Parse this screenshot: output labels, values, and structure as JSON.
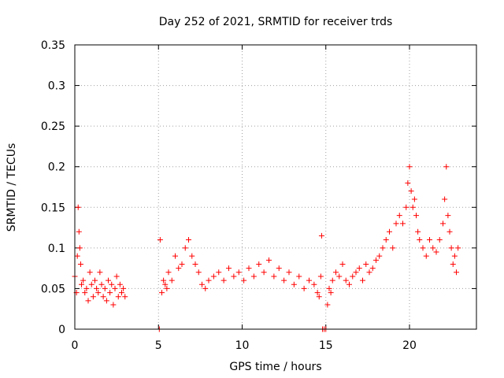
{
  "chart_data": {
    "type": "scatter",
    "title": "Day 252 of 2021, SRMTID for receiver trds",
    "xlabel": "GPS time / hours",
    "ylabel": "SRMTID / TECUs",
    "xlim": [
      0,
      24
    ],
    "ylim": [
      0,
      0.35
    ],
    "x_ticks": [
      0,
      5,
      10,
      15,
      20
    ],
    "x_tick_labels": [
      "0",
      "5",
      "10",
      "15",
      "20"
    ],
    "y_ticks": [
      0,
      0.05,
      0.1,
      0.15,
      0.2,
      0.25,
      0.3,
      0.35
    ],
    "y_tick_labels": [
      "0",
      "0.05",
      "0.1",
      "0.15",
      "0.2",
      "0.25",
      "0.3",
      "0.35"
    ],
    "grid": true,
    "marker": "plus",
    "color": "#ff0000",
    "series": [
      {
        "name": "trds",
        "x": [
          0.0,
          0.1,
          0.15,
          0.2,
          0.25,
          0.3,
          0.35,
          0.4,
          0.5,
          0.6,
          0.7,
          0.8,
          0.9,
          1.0,
          1.1,
          1.2,
          1.3,
          1.4,
          1.5,
          1.6,
          1.7,
          1.8,
          1.9,
          2.0,
          2.1,
          2.2,
          2.3,
          2.4,
          2.5,
          2.6,
          2.7,
          2.8,
          2.9,
          3.0,
          5.05,
          5.1,
          5.2,
          5.3,
          5.4,
          5.5,
          5.6,
          5.8,
          6.0,
          6.2,
          6.4,
          6.6,
          6.8,
          7.0,
          7.2,
          7.4,
          7.6,
          7.8,
          8.0,
          8.3,
          8.6,
          8.9,
          9.2,
          9.5,
          9.8,
          10.1,
          10.4,
          10.7,
          11.0,
          11.3,
          11.6,
          11.9,
          12.2,
          12.5,
          12.8,
          13.1,
          13.4,
          13.7,
          14.0,
          14.3,
          14.5,
          14.6,
          14.7,
          14.75,
          14.8,
          14.9,
          15.0,
          15.1,
          15.2,
          15.3,
          15.4,
          15.6,
          15.8,
          16.0,
          16.2,
          16.4,
          16.6,
          16.8,
          17.0,
          17.2,
          17.4,
          17.6,
          17.8,
          18.0,
          18.2,
          18.4,
          18.6,
          18.8,
          19.0,
          19.2,
          19.4,
          19.6,
          19.8,
          19.9,
          20.0,
          20.1,
          20.2,
          20.3,
          20.4,
          20.5,
          20.6,
          20.8,
          21.0,
          21.2,
          21.4,
          21.6,
          21.8,
          22.0,
          22.1,
          22.2,
          22.3,
          22.4,
          22.5,
          22.6,
          22.7,
          22.8,
          22.9
        ],
        "y": [
          0.065,
          0.045,
          0.09,
          0.15,
          0.12,
          0.1,
          0.08,
          0.055,
          0.06,
          0.045,
          0.05,
          0.035,
          0.07,
          0.055,
          0.04,
          0.06,
          0.05,
          0.045,
          0.07,
          0.055,
          0.04,
          0.05,
          0.035,
          0.06,
          0.045,
          0.055,
          0.03,
          0.05,
          0.065,
          0.04,
          0.055,
          0.045,
          0.05,
          0.04,
          0.0,
          0.11,
          0.045,
          0.06,
          0.055,
          0.05,
          0.07,
          0.06,
          0.09,
          0.075,
          0.08,
          0.1,
          0.11,
          0.09,
          0.08,
          0.07,
          0.055,
          0.05,
          0.06,
          0.065,
          0.07,
          0.06,
          0.075,
          0.065,
          0.07,
          0.06,
          0.075,
          0.065,
          0.08,
          0.07,
          0.085,
          0.065,
          0.075,
          0.06,
          0.07,
          0.055,
          0.065,
          0.05,
          0.06,
          0.055,
          0.045,
          0.04,
          0.065,
          0.115,
          0.0,
          0.0,
          0.0,
          0.03,
          0.05,
          0.045,
          0.06,
          0.07,
          0.065,
          0.08,
          0.06,
          0.055,
          0.065,
          0.07,
          0.075,
          0.06,
          0.08,
          0.07,
          0.075,
          0.085,
          0.09,
          0.1,
          0.11,
          0.12,
          0.1,
          0.13,
          0.14,
          0.13,
          0.15,
          0.18,
          0.2,
          0.17,
          0.15,
          0.16,
          0.14,
          0.12,
          0.11,
          0.1,
          0.09,
          0.11,
          0.1,
          0.095,
          0.11,
          0.13,
          0.16,
          0.2,
          0.14,
          0.12,
          0.1,
          0.08,
          0.09,
          0.07,
          0.1
        ]
      }
    ]
  }
}
